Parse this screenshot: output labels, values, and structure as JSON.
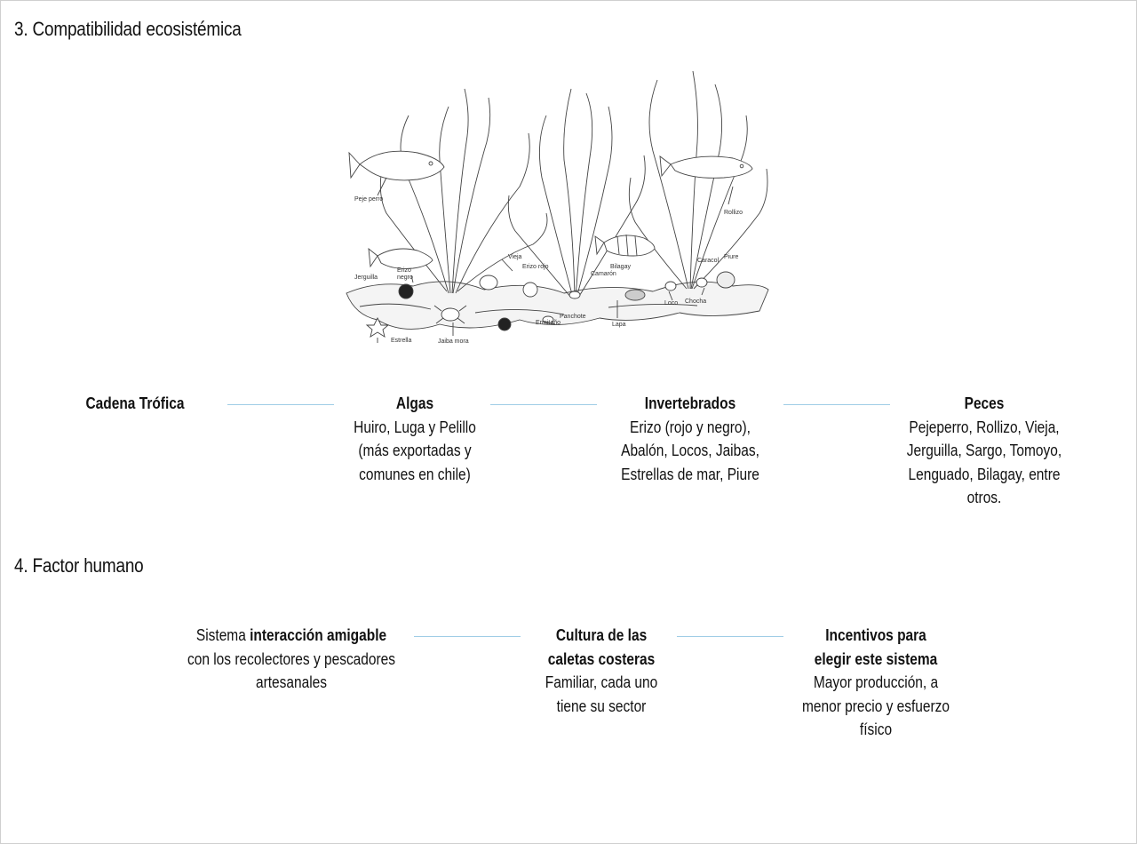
{
  "sections": {
    "eco_title": "3. Compatibilidad ecosistémica",
    "human_title": "4. Factor humano"
  },
  "illustration": {
    "labels": {
      "peje_perro": "Peje perro",
      "rollizo": "Rollizo",
      "jerguilla": "Jerguilla",
      "erizo_negro_1": "Erizo",
      "erizo_negro_2": "negro",
      "vieja": "Vieja",
      "erizo_rojo": "Erizo rojo",
      "bilagay": "Bilagay",
      "camaron": "Camarón",
      "caracol": "Caracol",
      "piure": "Piure",
      "loco": "Loco",
      "chocha": "Chocha",
      "panchote": "Panchote",
      "ermitano": "Ermitaño",
      "lapa": "Lapa",
      "estrella": "Estrella",
      "jaiba_mora": "Jaiba mora"
    }
  },
  "trophic": {
    "label": "Cadena Trófica",
    "algas": {
      "title": "Algas",
      "lines": [
        "Huiro, Luga y Pelillo",
        "(más exportadas y",
        "comunes en chile)"
      ]
    },
    "invertebrados": {
      "title": "Invertebrados",
      "lines": [
        "Erizo (rojo y negro),",
        "Abalón, Locos, Jaibas,",
        "Estrellas de mar, Piure"
      ]
    },
    "peces": {
      "title": "Peces",
      "lines": [
        "Pejeperro, Rollizo, Vieja,",
        "Jerguilla, Sargo, Tomoyo,",
        "Lenguado, Bilagay, entre",
        "otros."
      ]
    }
  },
  "human": {
    "sistema": {
      "pre": "Sistema ",
      "bold": "interacción amigable",
      "lines": [
        "con los recolectores y pescadores",
        "artesanales"
      ]
    },
    "cultura": {
      "title_lines": [
        "Cultura de las",
        "caletas costeras"
      ],
      "lines": [
        "Familiar, cada uno",
        "tiene su sector"
      ]
    },
    "incentivos": {
      "title_lines": [
        "Incentivos para",
        "elegir este sistema"
      ],
      "lines": [
        "Mayor producción, a",
        "menor precio y esfuerzo",
        "físico"
      ]
    }
  },
  "colors": {
    "connector": "#9fcde6",
    "text": "#111111"
  }
}
